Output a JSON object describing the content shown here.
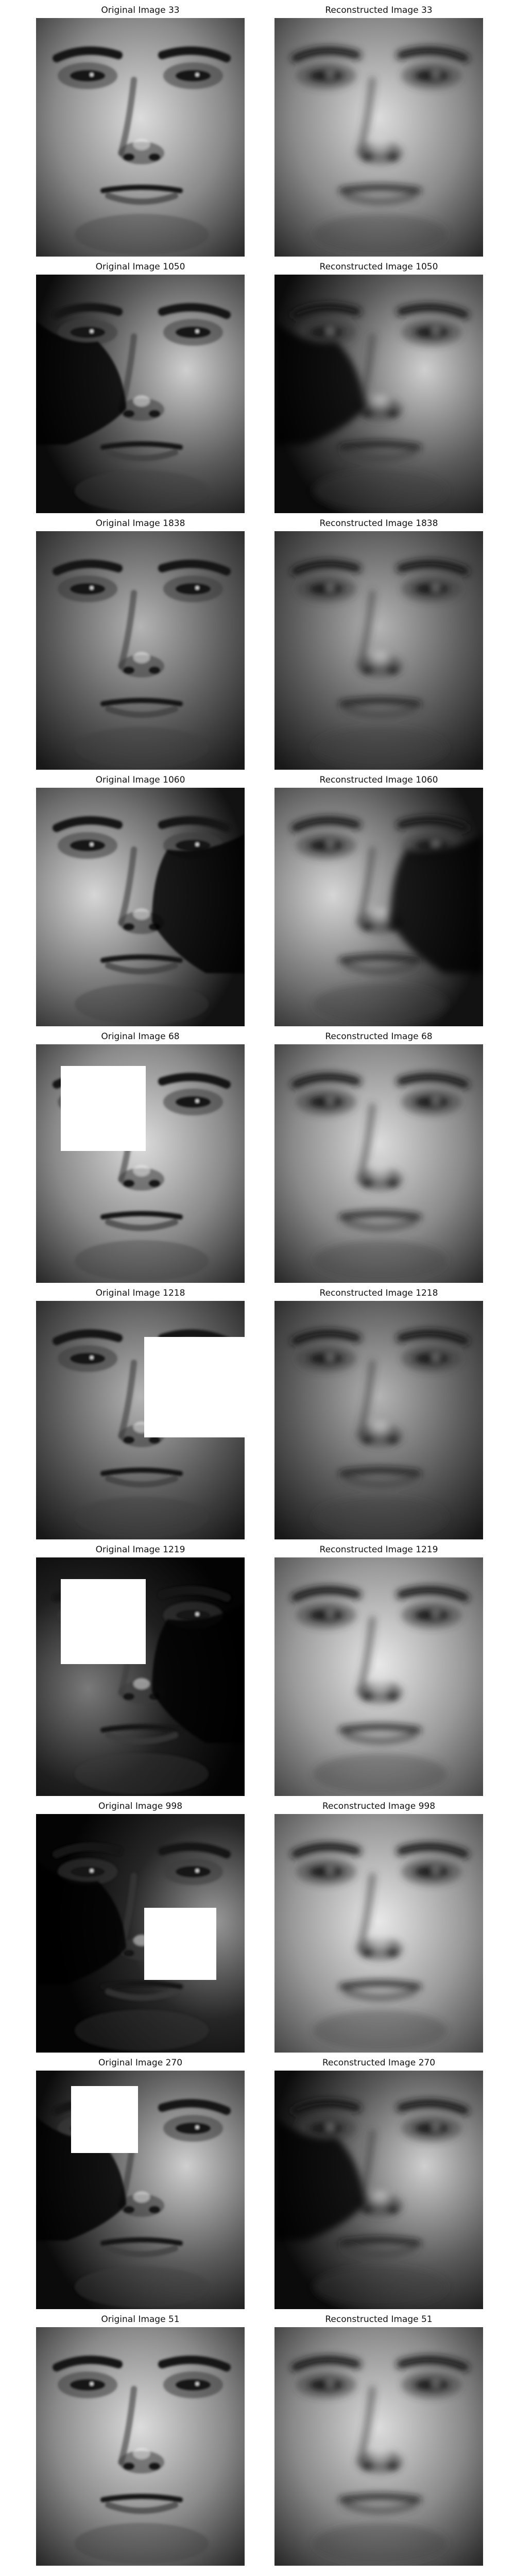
{
  "figure": {
    "rows": [
      {
        "original": {
          "title": "Original Image 33",
          "image_icon": "face-photo-icon",
          "occlusion": "none",
          "lighting": "frontal"
        },
        "reconstructed": {
          "title": "Reconstructed Image 33",
          "image_icon": "face-reconstruction-icon",
          "occlusion": "none",
          "lighting": "frontal"
        }
      },
      {
        "original": {
          "title": "Original Image 1050",
          "image_icon": "face-photo-icon",
          "occlusion": "none",
          "lighting": "right"
        },
        "reconstructed": {
          "title": "Reconstructed Image 1050",
          "image_icon": "face-reconstruction-icon",
          "occlusion": "none",
          "lighting": "right"
        }
      },
      {
        "original": {
          "title": "Original Image 1838",
          "image_icon": "face-photo-icon",
          "occlusion": "none",
          "lighting": "frontal-dark"
        },
        "reconstructed": {
          "title": "Reconstructed Image 1838",
          "image_icon": "face-reconstruction-icon",
          "occlusion": "none",
          "lighting": "frontal-dark"
        }
      },
      {
        "original": {
          "title": "Original Image 1060",
          "image_icon": "face-photo-icon",
          "occlusion": "none",
          "lighting": "left"
        },
        "reconstructed": {
          "title": "Reconstructed Image 1060",
          "image_icon": "face-reconstruction-icon",
          "occlusion": "none",
          "lighting": "left"
        }
      },
      {
        "original": {
          "title": "Original Image 68",
          "image_icon": "face-photo-icon",
          "occlusion": "white-square-top-left",
          "lighting": "frontal"
        },
        "reconstructed": {
          "title": "Reconstructed Image 68",
          "image_icon": "face-reconstruction-icon",
          "occlusion": "none",
          "lighting": "frontal"
        }
      },
      {
        "original": {
          "title": "Original Image 1218",
          "image_icon": "face-photo-icon",
          "occlusion": "white-square-right",
          "lighting": "frontal-dark"
        },
        "reconstructed": {
          "title": "Reconstructed Image 1218",
          "image_icon": "face-reconstruction-icon",
          "occlusion": "none",
          "lighting": "frontal-dark"
        }
      },
      {
        "original": {
          "title": "Original Image 1219",
          "image_icon": "face-photo-icon",
          "occlusion": "white-square-top-left",
          "lighting": "very-dark-left"
        },
        "reconstructed": {
          "title": "Reconstructed Image 1219",
          "image_icon": "face-reconstruction-icon",
          "occlusion": "none",
          "lighting": "soft"
        }
      },
      {
        "original": {
          "title": "Original Image 998",
          "image_icon": "face-photo-icon",
          "occlusion": "white-square-bottom-right",
          "lighting": "very-dark-right"
        },
        "reconstructed": {
          "title": "Reconstructed Image 998",
          "image_icon": "face-reconstruction-icon",
          "occlusion": "none",
          "lighting": "soft"
        }
      },
      {
        "original": {
          "title": "Original Image 270",
          "image_icon": "face-photo-icon",
          "occlusion": "white-square-top",
          "lighting": "right"
        },
        "reconstructed": {
          "title": "Reconstructed Image 270",
          "image_icon": "face-reconstruction-icon",
          "occlusion": "none",
          "lighting": "right"
        }
      },
      {
        "original": {
          "title": "Original Image 51",
          "image_icon": "face-photo-icon",
          "occlusion": "none",
          "lighting": "frontal"
        },
        "reconstructed": {
          "title": "Reconstructed Image 51",
          "image_icon": "face-reconstruction-icon",
          "occlusion": "none",
          "lighting": "frontal"
        }
      }
    ]
  }
}
